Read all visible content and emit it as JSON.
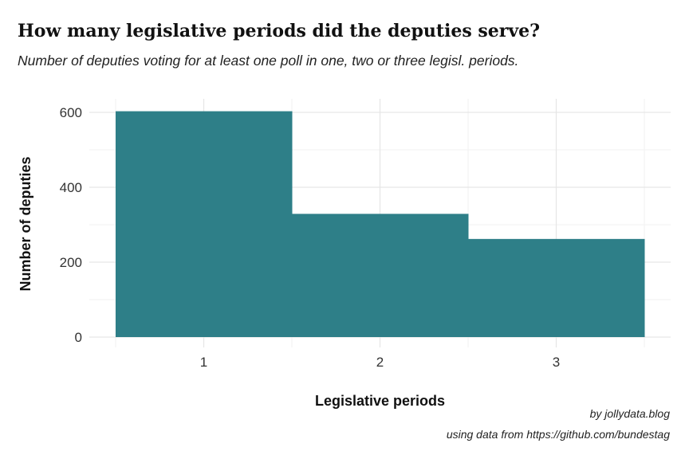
{
  "chart_data": {
    "type": "bar",
    "title": "How many legislative periods did the deputies serve?",
    "subtitle": "Number of deputies voting for at least one poll in one, two or three legisl. periods.",
    "xlabel": "Legislative periods",
    "ylabel": "Number of deputies",
    "categories": [
      "1",
      "2",
      "3"
    ],
    "values": [
      603,
      329,
      262
    ],
    "ylim": [
      0,
      630
    ],
    "yticks": [
      0,
      200,
      400,
      600
    ],
    "bar_color": "#2e7f88",
    "grid": true,
    "caption_lines": [
      "by jollydata.blog",
      "using data from https://github.com/bundestag"
    ]
  }
}
